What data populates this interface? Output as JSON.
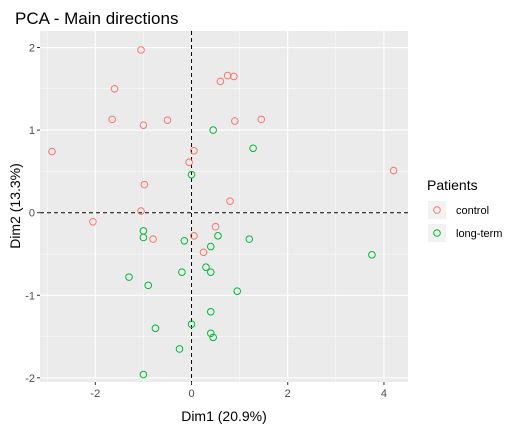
{
  "chart_data": {
    "type": "scatter",
    "title": "PCA - Main directions",
    "xlabel": "Dim1 (20.9%)",
    "ylabel": "Dim2 (13.3%)",
    "xlim": [
      -3.15,
      4.5
    ],
    "ylim": [
      -2.05,
      2.2
    ],
    "x_ticks": [
      -2,
      0,
      2,
      4
    ],
    "y_ticks": [
      -2,
      -1,
      0,
      1,
      2
    ],
    "x_tick_labels": [
      "-2",
      "0",
      "2",
      "4"
    ],
    "y_tick_labels": [
      "-2",
      "-1",
      "0",
      "1",
      "2"
    ],
    "grid": true,
    "reference_lines": {
      "x": 0,
      "y": 0,
      "style": "dashed"
    },
    "legend": {
      "title": "Patients",
      "position": "right"
    },
    "series": [
      {
        "name": "control",
        "color": "#F8766D",
        "marker": "open-circle",
        "points": [
          [
            -1.05,
            1.97
          ],
          [
            -1.6,
            1.5
          ],
          [
            -1.65,
            1.13
          ],
          [
            -1.0,
            1.06
          ],
          [
            -0.5,
            1.12
          ],
          [
            -2.9,
            0.74
          ],
          [
            -0.98,
            0.34
          ],
          [
            -2.05,
            -0.11
          ],
          [
            -1.05,
            0.02
          ],
          [
            -0.8,
            -0.32
          ],
          [
            0.75,
            1.66
          ],
          [
            0.88,
            1.65
          ],
          [
            0.6,
            1.59
          ],
          [
            0.9,
            1.11
          ],
          [
            1.45,
            1.13
          ],
          [
            0.05,
            0.75
          ],
          [
            -0.05,
            0.61
          ],
          [
            0.8,
            0.14
          ],
          [
            0.5,
            -0.17
          ],
          [
            0.05,
            -0.28
          ],
          [
            0.25,
            -0.48
          ],
          [
            4.2,
            0.51
          ]
        ]
      },
      {
        "name": "long-term",
        "color": "#00BA38",
        "marker": "open-circle",
        "points": [
          [
            0.45,
            1.0
          ],
          [
            1.28,
            0.78
          ],
          [
            0.0,
            0.46
          ],
          [
            -1.0,
            -0.22
          ],
          [
            -1.0,
            -0.3
          ],
          [
            -0.15,
            -0.34
          ],
          [
            0.55,
            -0.28
          ],
          [
            0.4,
            -0.41
          ],
          [
            1.2,
            -0.32
          ],
          [
            3.75,
            -0.51
          ],
          [
            0.3,
            -0.66
          ],
          [
            0.4,
            -0.72
          ],
          [
            -0.2,
            -0.72
          ],
          [
            -1.3,
            -0.78
          ],
          [
            -0.9,
            -0.88
          ],
          [
            0.95,
            -0.95
          ],
          [
            0.4,
            -1.2
          ],
          [
            -0.75,
            -1.4
          ],
          [
            0.0,
            -1.35
          ],
          [
            0.4,
            -1.46
          ],
          [
            0.45,
            -1.51
          ],
          [
            -0.25,
            -1.65
          ],
          [
            -1.0,
            -1.96
          ]
        ]
      }
    ]
  }
}
